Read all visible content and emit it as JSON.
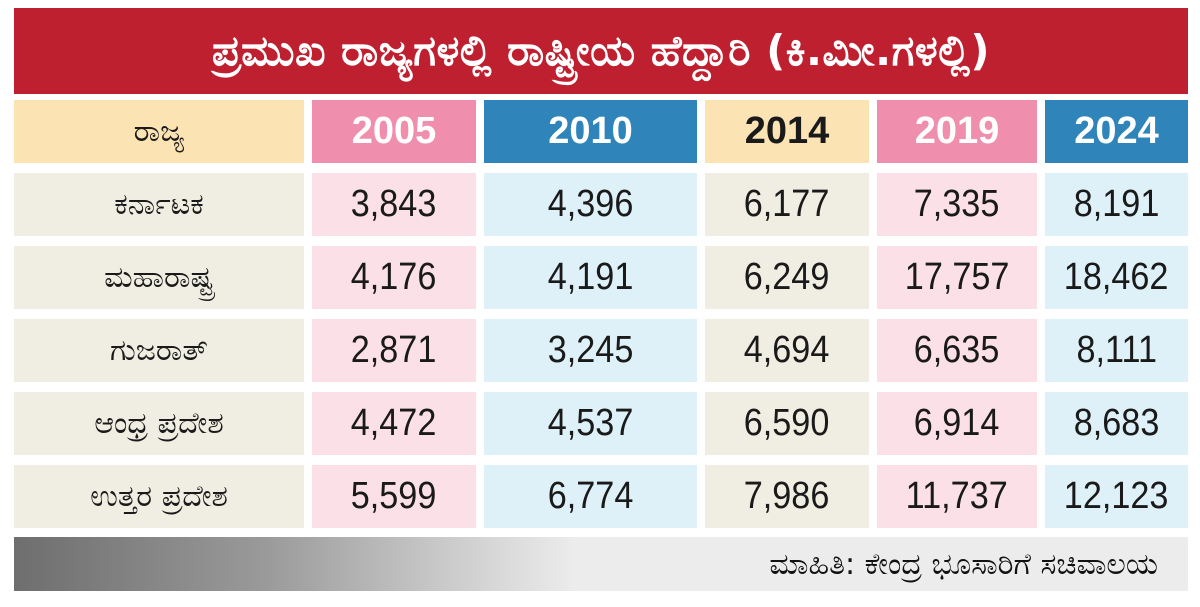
{
  "title": "ಪ್ರಮುಖ ರಾಜ್ಯಗಳಲ್ಲಿ ರಾಷ್ಟ್ರೀಯ ಹೆದ್ದಾರಿ (ಕಿ.ಮೀ.ಗಳಲ್ಲಿ)",
  "columns": [
    "ರಾಜ್ಯ",
    "2005",
    "2010",
    "2014",
    "2019",
    "2024"
  ],
  "rows": [
    {
      "state": "ಕರ್ನಾಟಕ",
      "values": [
        "3,843",
        "4,396",
        "6,177",
        "7,335",
        "8,191"
      ]
    },
    {
      "state": "ಮಹಾರಾಷ್ಟ್ರ",
      "values": [
        "4,176",
        "4,191",
        "6,249",
        "17,757",
        "18,462"
      ]
    },
    {
      "state": "ಗುಜರಾತ್",
      "values": [
        "2,871",
        "3,245",
        "4,694",
        "6,635",
        "8,111"
      ]
    },
    {
      "state": "ಆಂಧ್ರ ಪ್ರದೇಶ",
      "values": [
        "4,472",
        "4,537",
        "6,590",
        "6,914",
        "8,683"
      ]
    },
    {
      "state": "ಉತ್ತರ ಪ್ರದೇಶ",
      "values": [
        "5,599",
        "6,774",
        "7,986",
        "11,737",
        "12,123"
      ]
    }
  ],
  "source": "ಮಾಹಿತಿ: ಕೇಂದ್ರ ಭೂಸಾರಿಗೆ ಸಚಿವಾಲಯ",
  "colors": {
    "title_bg": "#bf2030",
    "state_header_bg": "#fbe3b4",
    "y2005_header_bg": "#f08eae",
    "y2010_header_bg": "#2f84b9",
    "y2014_header_bg": "#fbe3b4",
    "y2019_header_bg": "#f08eae",
    "y2024_header_bg": "#2f84b9",
    "state_cell_bg": "#f0eee2",
    "pink_cell_bg": "#fbe0e8",
    "blue_cell_bg": "#def1f8",
    "cream_cell_bg": "#f0eee2"
  }
}
